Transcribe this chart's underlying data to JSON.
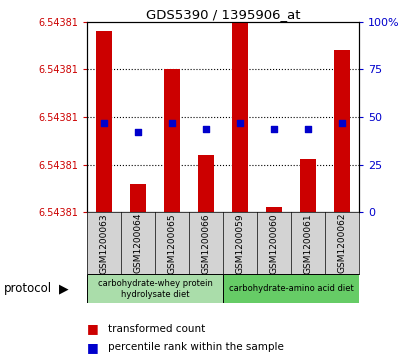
{
  "title": "GDS5390 / 1395906_at",
  "samples": [
    "GSM1200063",
    "GSM1200064",
    "GSM1200065",
    "GSM1200066",
    "GSM1200059",
    "GSM1200060",
    "GSM1200061",
    "GSM1200062"
  ],
  "bar_heights_pct": [
    95,
    15,
    75,
    30,
    100,
    3,
    28,
    85
  ],
  "percentile_values": [
    47,
    42,
    47,
    44,
    47,
    44,
    44,
    47
  ],
  "ylim_right": [
    0,
    100
  ],
  "y_tick_labels_left": [
    "6.54381",
    "6.54381",
    "6.54381",
    "6.54381",
    "6.54381"
  ],
  "y_ticks_right": [
    0,
    25,
    50,
    75,
    100
  ],
  "bar_color": "#cc0000",
  "percentile_color": "#0000cc",
  "protocol_groups": [
    {
      "label": "carbohydrate-whey protein\nhydrolysate diet",
      "samples": [
        0,
        1,
        2,
        3
      ],
      "color": "#aaddaa"
    },
    {
      "label": "carbohydrate-amino acid diet",
      "samples": [
        4,
        5,
        6,
        7
      ],
      "color": "#66cc66"
    }
  ],
  "legend_items": [
    {
      "label": "transformed count",
      "color": "#cc0000"
    },
    {
      "label": "percentile rank within the sample",
      "color": "#0000cc"
    }
  ],
  "protocol_label": "protocol"
}
